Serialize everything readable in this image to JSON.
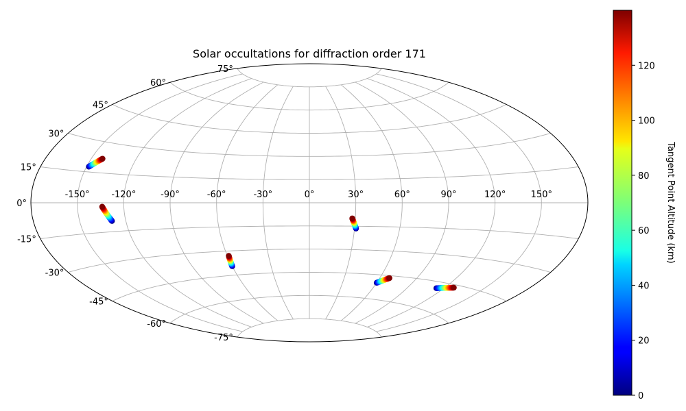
{
  "chart_data": {
    "type": "scatter",
    "projection": "aitoff",
    "title": "Solar occultations for diffraction order 171",
    "grid": true,
    "lon_ticks": [
      "-150°",
      "-120°",
      "-90°",
      "-60°",
      "-30°",
      "0°",
      "30°",
      "60°",
      "90°",
      "120°",
      "150°"
    ],
    "lat_ticks": [
      "75°",
      "60°",
      "45°",
      "30°",
      "15°",
      "0°",
      "-15°",
      "-30°",
      "-45°",
      "-60°",
      "-75°"
    ],
    "colorbar": {
      "label": "Tangent Point Altitude (km)",
      "colormap": "jet",
      "range": [
        0,
        140
      ],
      "ticks": [
        "0",
        "20",
        "40",
        "60",
        "80",
        "100",
        "120"
      ]
    },
    "series": [
      {
        "start": [
          -148.5,
          17.5
        ],
        "end": [
          -142.5,
          22.0
        ],
        "alt_range": [
          0,
          140
        ]
      },
      {
        "start": [
          -129.0,
          -9.5
        ],
        "end": [
          -134.0,
          -2.0
        ],
        "alt_range": [
          0,
          140
        ]
      },
      {
        "start": [
          -60.0,
          -39.5
        ],
        "end": [
          -59.0,
          -33.0
        ],
        "alt_range": [
          0,
          140
        ]
      },
      {
        "start": [
          31.0,
          -16.5
        ],
        "end": [
          28.0,
          -10.0
        ],
        "alt_range": [
          0,
          140
        ]
      },
      {
        "start": [
          60.0,
          -50.0
        ],
        "end": [
          68.0,
          -46.5
        ],
        "alt_range": [
          0,
          140
        ]
      },
      {
        "start": [
          114.0,
          -48.5
        ],
        "end": [
          127.0,
          -46.5
        ],
        "alt_range": [
          0,
          140
        ]
      }
    ]
  }
}
